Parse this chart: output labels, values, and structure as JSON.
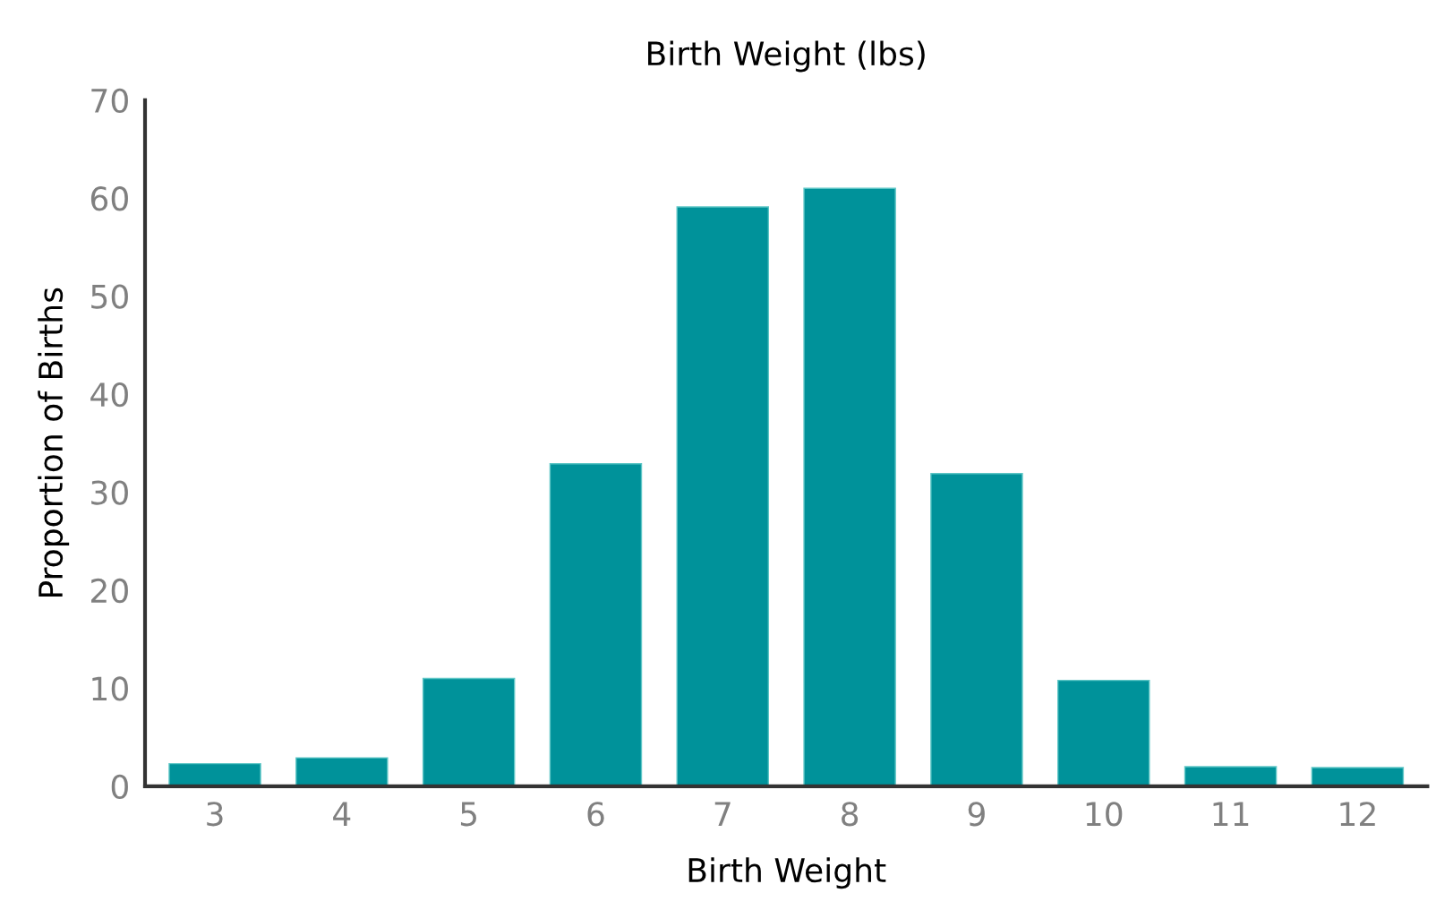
{
  "chart_data": {
    "type": "bar",
    "title": "Birth Weight (lbs)",
    "xlabel": "Birth Weight",
    "ylabel": "Proportion of Births",
    "categories": [
      "3",
      "4",
      "5",
      "6",
      "7",
      "8",
      "9",
      "10",
      "11",
      "12"
    ],
    "values": [
      2.3,
      2.9,
      11.0,
      32.9,
      59.1,
      61.0,
      31.9,
      10.8,
      2.0,
      1.9
    ],
    "color": "#00929a",
    "ylim": [
      0,
      70
    ],
    "yticks": [
      0,
      10,
      20,
      30,
      40,
      50,
      60,
      70
    ],
    "grid": false,
    "legend": false
  }
}
